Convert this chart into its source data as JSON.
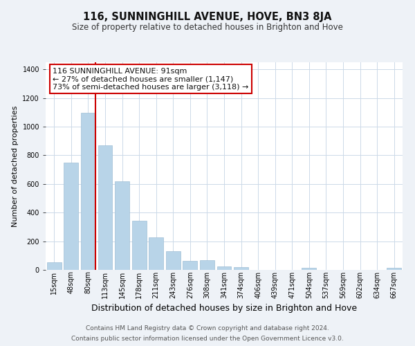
{
  "title": "116, SUNNINGHILL AVENUE, HOVE, BN3 8JA",
  "subtitle": "Size of property relative to detached houses in Brighton and Hove",
  "xlabel": "Distribution of detached houses by size in Brighton and Hove",
  "ylabel": "Number of detached properties",
  "categories": [
    "15sqm",
    "48sqm",
    "80sqm",
    "113sqm",
    "145sqm",
    "178sqm",
    "211sqm",
    "243sqm",
    "276sqm",
    "308sqm",
    "341sqm",
    "374sqm",
    "406sqm",
    "439sqm",
    "471sqm",
    "504sqm",
    "537sqm",
    "569sqm",
    "602sqm",
    "634sqm",
    "667sqm"
  ],
  "values": [
    55,
    750,
    1095,
    870,
    620,
    345,
    225,
    130,
    65,
    70,
    25,
    20,
    0,
    0,
    0,
    15,
    0,
    0,
    0,
    0,
    15
  ],
  "bar_color": "#b8d4e8",
  "bar_edge_color": "#9fbfd6",
  "vline_index": 2,
  "vline_color": "#cc0000",
  "annotation_line1": "116 SUNNINGHILL AVENUE: 91sqm",
  "annotation_line2": "← 27% of detached houses are smaller (1,147)",
  "annotation_line3": "73% of semi-detached houses are larger (3,118) →",
  "annotation_box_color": "#ffffff",
  "annotation_box_edge": "#cc0000",
  "ylim": [
    0,
    1450
  ],
  "yticks": [
    0,
    200,
    400,
    600,
    800,
    1000,
    1200,
    1400
  ],
  "footer_line1": "Contains HM Land Registry data © Crown copyright and database right 2024.",
  "footer_line2": "Contains public sector information licensed under the Open Government Licence v3.0.",
  "bg_color": "#eef2f7",
  "plot_bg_color": "#ffffff",
  "grid_color": "#ccd9e8",
  "title_fontsize": 10.5,
  "subtitle_fontsize": 8.5,
  "ylabel_fontsize": 8,
  "xlabel_fontsize": 9,
  "tick_fontsize": 7,
  "footer_fontsize": 6.5,
  "annotation_fontsize": 8
}
